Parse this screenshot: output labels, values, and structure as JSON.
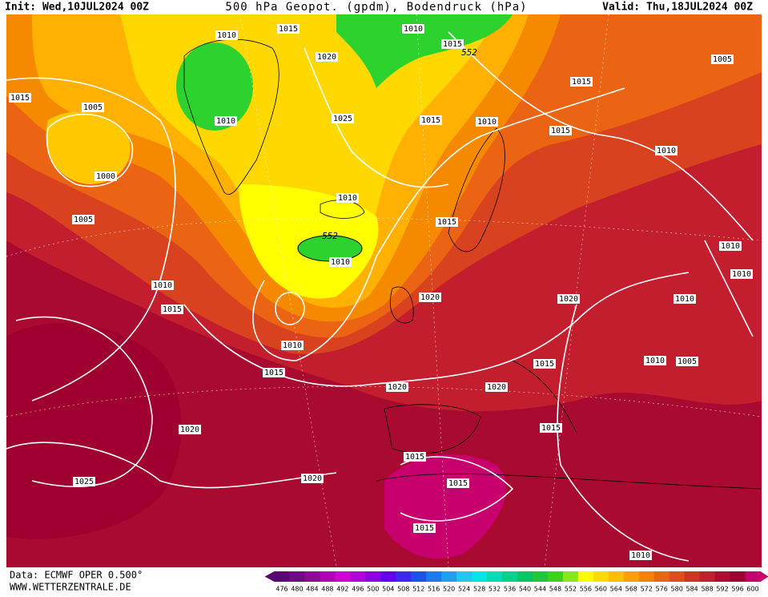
{
  "header": {
    "init": "Init: Wed,10JUL2024 00Z",
    "title": "500 hPa Geopot. (gpdm), Bodendruck (hPa)",
    "valid": "Valid: Thu,18JUL2024 00Z"
  },
  "isobar_labels": [
    1010,
    1015,
    1010,
    1015,
    552,
    1020,
    1005,
    1015,
    1005,
    1010,
    1025,
    1015,
    1010,
    1015,
    1015,
    1010,
    1000,
    1010,
    1005,
    1015,
    552,
    1010,
    1010,
    1010,
    1010,
    1020,
    1020,
    1010,
    1015,
    1010,
    1015,
    1010,
    1005,
    1015,
    1020,
    1020,
    1015,
    1020,
    1015,
    1015,
    1025,
    1020,
    1015,
    1010
  ],
  "footer": {
    "source": "Data: ECMWF OPER 0.500°",
    "website": "WWW.WETTERZENTRALE.DE"
  },
  "colorbar": {
    "labels": [
      476,
      480,
      484,
      488,
      492,
      496,
      500,
      504,
      508,
      512,
      516,
      520,
      524,
      528,
      532,
      536,
      540,
      544,
      548,
      552,
      556,
      560,
      564,
      568,
      572,
      576,
      580,
      584,
      588,
      592,
      596,
      600
    ],
    "colors": [
      "#5a0a6e",
      "#6e0a82",
      "#8c0a96",
      "#b400b4",
      "#d200d2",
      "#b400dc",
      "#8c00e6",
      "#6400f0",
      "#3c28f0",
      "#1e50f0",
      "#1e78f0",
      "#1ea0f0",
      "#1ec8f0",
      "#00e6e6",
      "#00dcb4",
      "#00d28c",
      "#00c864",
      "#1ec83c",
      "#3cd21e",
      "#8ce614",
      "#ffff00",
      "#ffdc00",
      "#ffbe00",
      "#ffa000",
      "#f58200",
      "#eb6414",
      "#e14b1e",
      "#d23223",
      "#c31e2d",
      "#b40a32",
      "#a00032",
      "#c8006e"
    ]
  }
}
